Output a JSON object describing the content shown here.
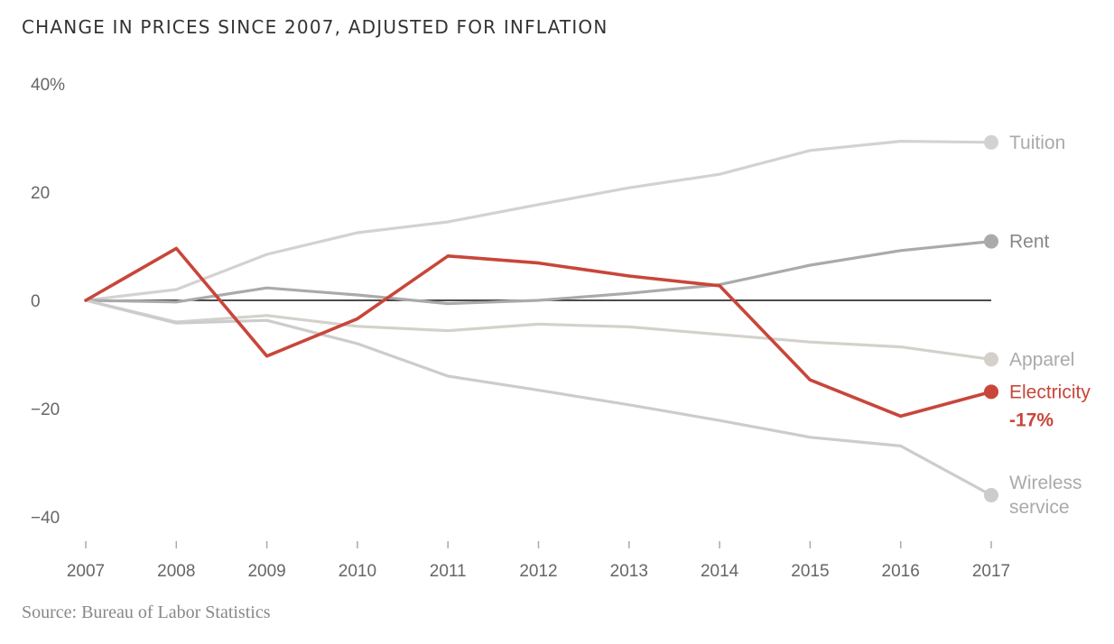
{
  "chart_data": {
    "type": "line",
    "title": "CHANGE IN PRICES SINCE 2007, ADJUSTED FOR INFLATION",
    "xlabel": "",
    "ylabel": "",
    "x": [
      2007,
      2008,
      2009,
      2010,
      2011,
      2012,
      2013,
      2014,
      2015,
      2016,
      2017
    ],
    "xticks": [
      "2007",
      "2008",
      "2009",
      "2010",
      "2011",
      "2012",
      "2013",
      "2014",
      "2015",
      "2016",
      "2017"
    ],
    "ylim": [
      -44,
      40
    ],
    "yticks": [
      {
        "value": 40,
        "label": "40%"
      },
      {
        "value": 20,
        "label": "20"
      },
      {
        "value": 0,
        "label": "0"
      },
      {
        "value": -20,
        "label": "−20"
      },
      {
        "value": -40,
        "label": "−40"
      }
    ],
    "grid": false,
    "zero_line": true,
    "legend": "direct labels at line ends (right)",
    "series": [
      {
        "name": "Tuition",
        "label_lines": [
          "Tuition"
        ],
        "color": "#d2d2d2",
        "label_color": "#aaaaaa",
        "values": [
          0,
          2.0,
          8.5,
          12.5,
          14.5,
          17.7,
          20.8,
          23.3,
          27.7,
          29.4,
          29.2
        ]
      },
      {
        "name": "Rent",
        "label_lines": [
          "Rent"
        ],
        "color": "#aaaaaa",
        "label_color": "#888888",
        "values": [
          0,
          -0.3,
          2.3,
          1.0,
          -0.6,
          0,
          1.3,
          2.9,
          6.5,
          9.2,
          10.9
        ]
      },
      {
        "name": "Apparel",
        "label_lines": [
          "Apparel"
        ],
        "color": "#d4d1cb",
        "label_color": "#aaaaaa",
        "values": [
          0,
          -4.0,
          -2.8,
          -4.8,
          -5.6,
          -4.4,
          -4.9,
          -6.3,
          -7.7,
          -8.6,
          -10.9
        ]
      },
      {
        "name": "Wireless service",
        "label_lines": [
          "Wireless",
          "service"
        ],
        "color": "#cccccc",
        "label_color": "#aaaaaa",
        "values": [
          0,
          -4.2,
          -3.7,
          -8.0,
          -14.0,
          -16.6,
          -19.3,
          -22.2,
          -25.3,
          -26.9,
          -36.0
        ]
      },
      {
        "name": "Electricity",
        "label_lines": [
          "Electricity"
        ],
        "color": "#c8463a",
        "label_color": "#c8463a",
        "values": [
          0,
          9.6,
          -10.3,
          -3.4,
          8.2,
          6.9,
          4.5,
          2.7,
          -14.7,
          -21.4,
          -16.9
        ],
        "highlight": true,
        "callout": "-17%"
      }
    ],
    "source": "Source: Bureau of Labor Statistics"
  }
}
